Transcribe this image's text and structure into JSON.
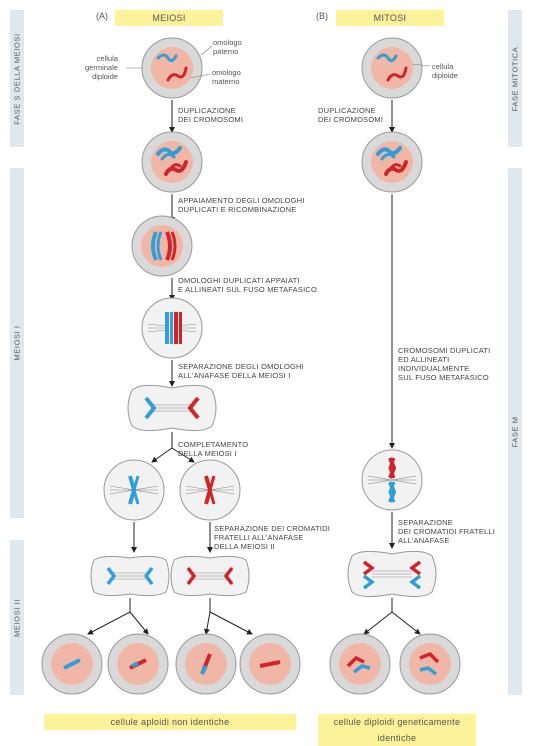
{
  "headers": {
    "a_letter": "(A)",
    "a_title": "MEIOSI",
    "b_letter": "(B)",
    "b_title": "MITOSI"
  },
  "side_labels": {
    "s_phase_meiosis": "FASE S DELLA MEIOSI",
    "meiosis_1": "MEIOSI I",
    "meiosis_2": "MEIOSI II",
    "mitotic_phase": "FASE MITOTICA",
    "m_phase": "FASE M"
  },
  "cell_labels": {
    "germ_cell": "cellula\ngerminale\ndiploide",
    "paternal": "omologo\npaterno",
    "maternal": "omologo\nmaterno",
    "diploid_cell": "cellula\ndiploide"
  },
  "steps_meiosis": {
    "dup": "DUPLICAZIONE\nDEI CROMOSOMI",
    "pairing": "APPAIAMENTO DEGLI OMOLOGHI\nDUPLICATI E RICOMBINAZIONE",
    "aligned": "OMOLOGHI DUPLICATI APPAIATI\nE ALLINEATI SUL FUSO METAFASICO",
    "separation": "SEPARAZIONE DEGLI OMOLOGHI\nALL'ANAFASE DELLA MEIOSI I",
    "completion": "COMPLETAMENTO\nDELLA MEIOSI I",
    "sister_sep": "SEPARAZIONE DEI CROMATIDI\nFRATELLI ALL'ANAFASE\nDELLA MEIOSI II"
  },
  "steps_mitosis": {
    "dup": "DUPLICAZIONE\nDEI CROMOSOMI",
    "aligned": "CROMOSOMI DUPLICATI\nED ALLINEATI\nINDIVIDUALMENTE\nSUL FUSO METAFASICO",
    "sister_sep": "SEPARAZIONE\nDEI CROMATIDI FRATELLI\nALL'ANAFASE"
  },
  "footer": {
    "meiosis_result": "cellule aploidi non identiche",
    "mitosis_result": "cellule diploidi geneticamente identiche"
  },
  "colors": {
    "paternal": "#2e9fd8",
    "maternal": "#d2232a",
    "pill": "#fbf29a",
    "side_bar": "#dfe7ef",
    "cell_fill": "#d9d9d9",
    "nucleus": "#f0b7a6"
  }
}
